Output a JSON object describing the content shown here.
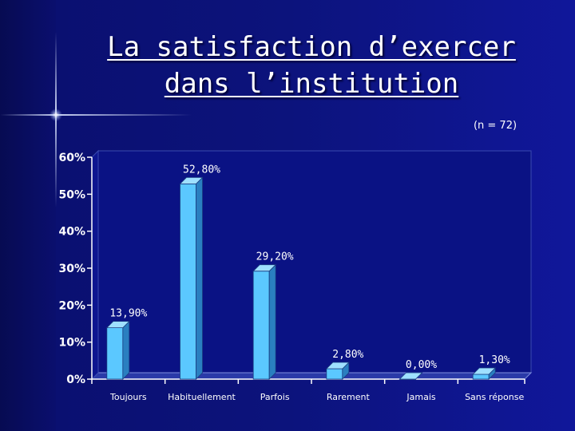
{
  "slide": {
    "title_line1": "La satisfaction d’exercer",
    "title_line2": "dans l’institution",
    "sample_note": "(n = 72)"
  },
  "colors": {
    "bar_front": "#5bc8ff",
    "bar_side": "#2a7fc0",
    "bar_top": "#9fe0ff",
    "axis": "#ffffff",
    "wall": "#0a1284"
  },
  "chart_data": {
    "type": "bar",
    "title": "",
    "xlabel": "",
    "ylabel": "",
    "categories": [
      "Toujours",
      "Habituellement",
      "Parfois",
      "Rarement",
      "Jamais",
      "Sans réponse"
    ],
    "values": [
      13.9,
      52.8,
      29.2,
      2.8,
      0.0,
      1.3
    ],
    "data_labels": [
      "13,90%",
      "52,80%",
      "29,20%",
      "2,80%",
      "0,00%",
      "1,30%"
    ],
    "yticks": [
      0,
      10,
      20,
      30,
      40,
      50,
      60
    ],
    "ytick_labels": [
      "0%",
      "10%",
      "20%",
      "30%",
      "40%",
      "50%",
      "60%"
    ],
    "ylim": [
      0,
      60
    ],
    "grid": false,
    "legend": "none"
  }
}
